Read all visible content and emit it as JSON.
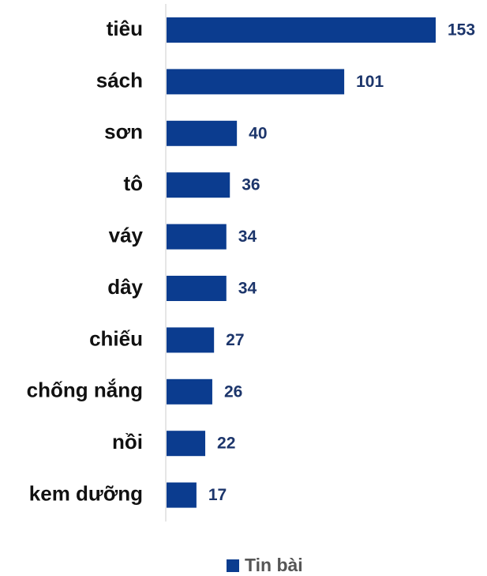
{
  "chart_data": {
    "type": "bar",
    "orientation": "horizontal",
    "categories": [
      "tiêu",
      "sách",
      "sơn",
      "tô",
      "váy",
      "dây",
      "chiếu",
      "chống nắng",
      "nồi",
      "kem dưỡng"
    ],
    "series": [
      {
        "name": "Tin bài",
        "color": "#0b3c8f",
        "values": [
          153,
          101,
          40,
          36,
          34,
          34,
          27,
          26,
          22,
          17
        ]
      }
    ],
    "legend": "bottom"
  }
}
